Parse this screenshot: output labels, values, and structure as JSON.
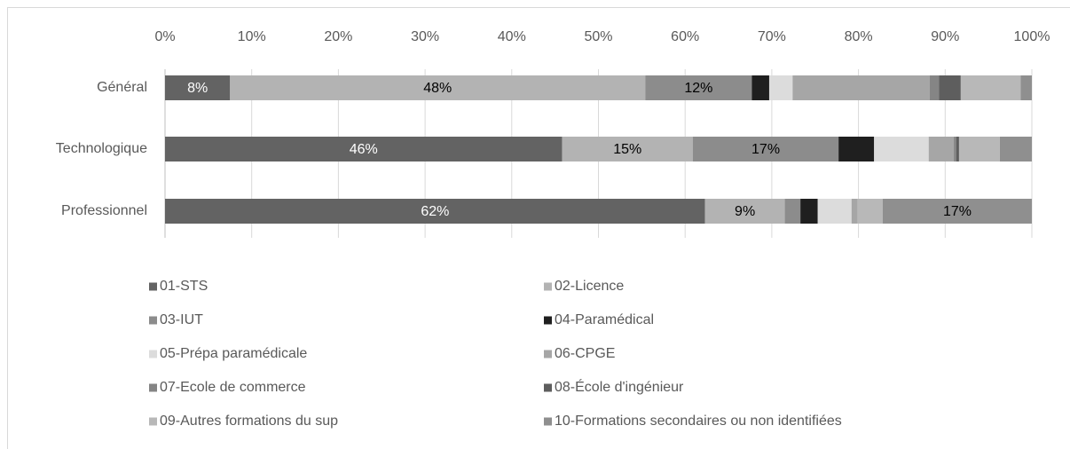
{
  "chart_data": {
    "type": "stacked_bar_horizontal",
    "categories": [
      "Général",
      "Technologique",
      "Professionnel"
    ],
    "xlim": [
      0,
      100
    ],
    "xticks": [
      {
        "value": 0,
        "label": "0%"
      },
      {
        "value": 10,
        "label": "10%"
      },
      {
        "value": 20,
        "label": "20%"
      },
      {
        "value": 30,
        "label": "30%"
      },
      {
        "value": 40,
        "label": "40%"
      },
      {
        "value": 50,
        "label": "50%"
      },
      {
        "value": 60,
        "label": "60%"
      },
      {
        "value": 70,
        "label": "70%"
      },
      {
        "value": 80,
        "label": "80%"
      },
      {
        "value": 90,
        "label": "90%"
      },
      {
        "value": 100,
        "label": "100%"
      }
    ],
    "grid": true,
    "legend": "bottom",
    "series": [
      {
        "name": "01-STS",
        "color": "#636363",
        "values": [
          7.5,
          45.8,
          62.3
        ],
        "value_labels": [
          "8%",
          "46%",
          "62%"
        ]
      },
      {
        "name": "02-Licence",
        "color": "#b3b3b3",
        "values": [
          47.9,
          15.1,
          9.2
        ],
        "value_labels": [
          "48%",
          "15%",
          "9%"
        ]
      },
      {
        "name": "03-IUT",
        "color": "#8c8c8c",
        "values": [
          12.3,
          16.8,
          1.8
        ],
        "value_labels": [
          "12%",
          "17%",
          null
        ]
      },
      {
        "name": "04-Paramédical",
        "color": "#1f1f1f",
        "values": [
          2.0,
          4.1,
          2.0
        ]
      },
      {
        "name": "05-Prépa paramédicale",
        "color": "#dcdcdc",
        "values": [
          2.7,
          6.3,
          3.9
        ]
      },
      {
        "name": "06-CPGE",
        "color": "#a6a6a6",
        "values": [
          15.8,
          2.9,
          0.7
        ]
      },
      {
        "name": "07-Ecole de commerce",
        "color": "#858585",
        "values": [
          1.1,
          0.3,
          0
        ]
      },
      {
        "name": "08-École d'ingénieur",
        "color": "#5e5e5e",
        "values": [
          2.5,
          0.3,
          0
        ]
      },
      {
        "name": "09-Autres formations du sup",
        "color": "#b8b8b8",
        "values": [
          6.9,
          4.7,
          2.9
        ]
      },
      {
        "name": "10-Formations secondaires ou non identifiées",
        "color": "#8f8f8f",
        "values": [
          1.3,
          3.7,
          17.2
        ],
        "value_labels": [
          null,
          null,
          "17%"
        ]
      }
    ]
  }
}
